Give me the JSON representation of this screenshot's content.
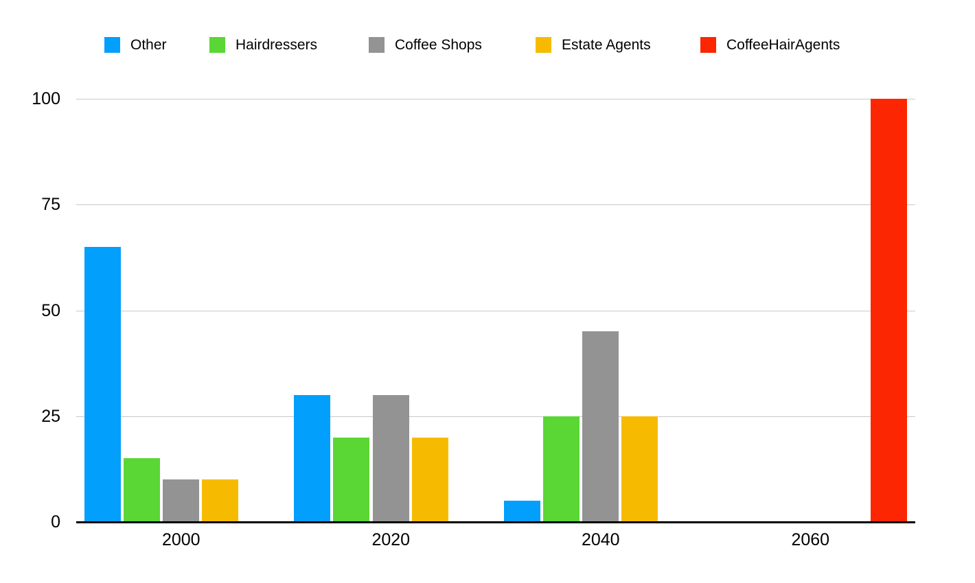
{
  "chart_data": {
    "type": "bar",
    "title": "",
    "categories": [
      "2000",
      "2020",
      "2040",
      "2060"
    ],
    "series": [
      {
        "name": "Other",
        "color": "#039FFC",
        "values": [
          65,
          30,
          5,
          0
        ]
      },
      {
        "name": "Hairdressers",
        "color": "#5AD635",
        "values": [
          15,
          20,
          25,
          0
        ]
      },
      {
        "name": "Coffee Shops",
        "color": "#939393",
        "values": [
          10,
          30,
          45,
          0
        ]
      },
      {
        "name": "Estate Agents",
        "color": "#F6BB00",
        "values": [
          10,
          20,
          25,
          0
        ]
      },
      {
        "name": "CoffeeHairAgents",
        "color": "#FC2602",
        "values": [
          0,
          0,
          0,
          100
        ]
      }
    ],
    "xlabel": "",
    "ylabel": "",
    "ylim": [
      0,
      100
    ],
    "y_ticks": [
      0,
      25,
      50,
      75,
      100
    ],
    "y_tick_labels": [
      "0",
      "25",
      "50",
      "75",
      "100"
    ],
    "grid": true,
    "legend_position": "top",
    "axis_color": "#000000",
    "gridline_color": "#C9C9C9",
    "background": "#FFFFFF"
  }
}
